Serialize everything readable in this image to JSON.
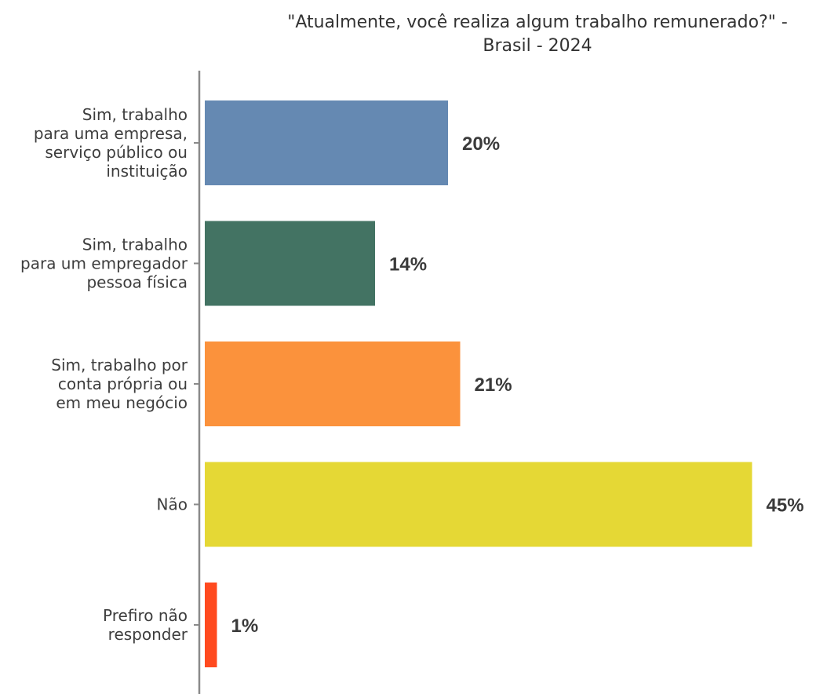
{
  "chart_data": {
    "type": "bar",
    "orientation": "horizontal",
    "title_lines": [
      "\"Atualmente, você realiza algum trabalho remunerado?\" -",
      "Brasil - 2024"
    ],
    "categories": [
      [
        "Sim, trabalho",
        "para uma empresa,",
        "serviço público ou",
        "instituição"
      ],
      [
        "Sim, trabalho",
        "para um empregador",
        "pessoa física"
      ],
      [
        "Sim, trabalho por",
        "conta própria ou",
        "em meu negócio"
      ],
      [
        "Não"
      ],
      [
        "Prefiro não",
        "responder"
      ]
    ],
    "values": [
      20,
      14,
      21,
      45,
      1
    ],
    "value_labels": [
      "20%",
      "14%",
      "21%",
      "45%",
      "1%"
    ],
    "colors": [
      "#6589b2",
      "#437363",
      "#fb923c",
      "#e5d835",
      "#ff4a1f"
    ],
    "xlim": [
      0,
      45
    ],
    "grid": false,
    "legend": "none"
  }
}
